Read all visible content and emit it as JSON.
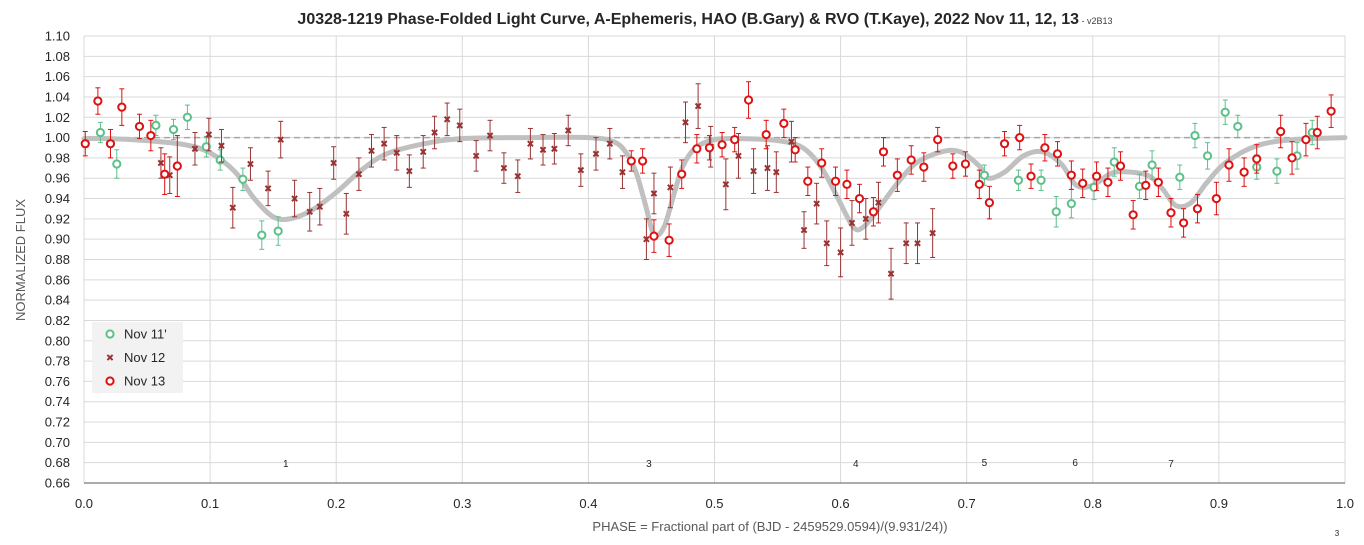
{
  "chart_data": {
    "type": "scatter",
    "title": "J0328-1219 Phase-Folded Light Curve, A-Ephemeris, HAO (B.Gary) & RVO (T.Kaye), 2022 Nov 11, 12, 13",
    "title_suffix": " - v2B13",
    "xlabel": "PHASE = Fractional part of (BJD - 2459529.0594)/(9.931/24))",
    "ylabel": "NORMALIZED FLUX",
    "xlim": [
      0,
      1
    ],
    "ylim": [
      0.66,
      1.1
    ],
    "x_ticks": [
      0.0,
      0.1,
      0.2,
      0.3,
      0.4,
      0.5,
      0.6,
      0.7,
      0.8,
      0.9,
      1.0
    ],
    "x_tick_labels": [
      "0.0",
      "0.1",
      "0.2",
      "0.3",
      "0.4",
      "0.5",
      "0.6",
      "0.7",
      "0.8",
      "0.9",
      "1.0"
    ],
    "y_ticks": [
      0.66,
      0.68,
      0.7,
      0.72,
      0.74,
      0.76,
      0.78,
      0.8,
      0.82,
      0.84,
      0.86,
      0.88,
      0.9,
      0.92,
      0.94,
      0.96,
      0.98,
      1.0,
      1.02,
      1.04,
      1.06,
      1.08,
      1.1
    ],
    "y_tick_labels": [
      "0.66",
      "0.68",
      "0.70",
      "0.72",
      "0.74",
      "0.76",
      "0.78",
      "0.80",
      "0.82",
      "0.84",
      "0.86",
      "0.88",
      "0.90",
      "0.92",
      "0.94",
      "0.96",
      "0.98",
      "1.00",
      "1.02",
      "1.04",
      "1.06",
      "1.08",
      "1.10"
    ],
    "grid": true,
    "reference_line": 1.0,
    "legend_position": "lower-left",
    "dip_labels": [
      {
        "text": "1",
        "x": 0.16,
        "y": 0.679
      },
      {
        "text": "3",
        "x": 0.448,
        "y": 0.679
      },
      {
        "text": "4",
        "x": 0.612,
        "y": 0.679
      },
      {
        "text": "5",
        "x": 0.714,
        "y": 0.68
      },
      {
        "text": "6",
        "x": 0.786,
        "y": 0.68
      },
      {
        "text": "7",
        "x": 0.862,
        "y": 0.679
      }
    ],
    "page_number": "3",
    "colors": {
      "nov11": "#5cc08a",
      "nov12": "#993333",
      "nov13": "#dd1111",
      "model": "#c0c0c0",
      "grid": "#d9d9d9",
      "axis": "#595959",
      "reference": "#a6a6a6"
    },
    "model_curve": [
      [
        0.0,
        0.999
      ],
      [
        0.02,
        0.999
      ],
      [
        0.05,
        0.997
      ],
      [
        0.08,
        0.993
      ],
      [
        0.1,
        0.985
      ],
      [
        0.12,
        0.966
      ],
      [
        0.135,
        0.94
      ],
      [
        0.15,
        0.922
      ],
      [
        0.163,
        0.92
      ],
      [
        0.18,
        0.928
      ],
      [
        0.2,
        0.946
      ],
      [
        0.22,
        0.968
      ],
      [
        0.24,
        0.984
      ],
      [
        0.27,
        0.994
      ],
      [
        0.3,
        0.999
      ],
      [
        0.35,
        1.0
      ],
      [
        0.4,
        1.0
      ],
      [
        0.42,
        0.996
      ],
      [
        0.43,
        0.985
      ],
      [
        0.438,
        0.965
      ],
      [
        0.445,
        0.935
      ],
      [
        0.452,
        0.905
      ],
      [
        0.46,
        0.912
      ],
      [
        0.468,
        0.945
      ],
      [
        0.475,
        0.972
      ],
      [
        0.485,
        0.99
      ],
      [
        0.5,
        0.998
      ],
      [
        0.52,
        0.999
      ],
      [
        0.55,
        0.997
      ],
      [
        0.57,
        0.99
      ],
      [
        0.585,
        0.97
      ],
      [
        0.598,
        0.94
      ],
      [
        0.61,
        0.912
      ],
      [
        0.618,
        0.912
      ],
      [
        0.63,
        0.93
      ],
      [
        0.645,
        0.955
      ],
      [
        0.66,
        0.975
      ],
      [
        0.68,
        0.986
      ],
      [
        0.695,
        0.986
      ],
      [
        0.71,
        0.972
      ],
      [
        0.717,
        0.96
      ],
      [
        0.73,
        0.966
      ],
      [
        0.745,
        0.982
      ],
      [
        0.76,
        0.986
      ],
      [
        0.775,
        0.974
      ],
      [
        0.787,
        0.953
      ],
      [
        0.8,
        0.953
      ],
      [
        0.815,
        0.965
      ],
      [
        0.83,
        0.966
      ],
      [
        0.845,
        0.962
      ],
      [
        0.855,
        0.95
      ],
      [
        0.866,
        0.933
      ],
      [
        0.878,
        0.936
      ],
      [
        0.89,
        0.955
      ],
      [
        0.905,
        0.975
      ],
      [
        0.93,
        0.992
      ],
      [
        0.96,
        0.998
      ],
      [
        1.0,
        1.0
      ]
    ],
    "series": [
      {
        "name": "Nov 11'",
        "marker": "open-circle",
        "points": [
          [
            0.013,
            1.005,
            0.01
          ],
          [
            0.026,
            0.974,
            0.014
          ],
          [
            0.057,
            1.012,
            0.01
          ],
          [
            0.071,
            1.008,
            0.01
          ],
          [
            0.082,
            1.02,
            0.012
          ],
          [
            0.097,
            0.991,
            0.01
          ],
          [
            0.108,
            0.978,
            0.01
          ],
          [
            0.126,
            0.959,
            0.011
          ],
          [
            0.141,
            0.904,
            0.014
          ],
          [
            0.154,
            0.908,
            0.014
          ],
          [
            0.714,
            0.963,
            0.01
          ],
          [
            0.741,
            0.958,
            0.01
          ],
          [
            0.759,
            0.958,
            0.01
          ],
          [
            0.771,
            0.927,
            0.015
          ],
          [
            0.783,
            0.935,
            0.014
          ],
          [
            0.801,
            0.951,
            0.012
          ],
          [
            0.817,
            0.976,
            0.014
          ],
          [
            0.837,
            0.952,
            0.012
          ],
          [
            0.847,
            0.973,
            0.014
          ],
          [
            0.869,
            0.961,
            0.012
          ],
          [
            0.881,
            1.002,
            0.012
          ],
          [
            0.891,
            0.982,
            0.013
          ],
          [
            0.905,
            1.025,
            0.012
          ],
          [
            0.915,
            1.011,
            0.011
          ],
          [
            0.93,
            0.971,
            0.012
          ],
          [
            0.946,
            0.967,
            0.012
          ],
          [
            0.962,
            0.982,
            0.013
          ],
          [
            0.974,
            1.005,
            0.012
          ]
        ]
      },
      {
        "name": "Nov 12",
        "marker": "x",
        "points": [
          [
            0.061,
            0.975,
            0.015
          ],
          [
            0.068,
            0.963,
            0.018
          ],
          [
            0.088,
            0.989,
            0.016
          ],
          [
            0.099,
            1.003,
            0.016
          ],
          [
            0.109,
            0.992,
            0.016
          ],
          [
            0.118,
            0.931,
            0.02
          ],
          [
            0.132,
            0.974,
            0.016
          ],
          [
            0.146,
            0.95,
            0.017
          ],
          [
            0.156,
            0.998,
            0.018
          ],
          [
            0.167,
            0.94,
            0.018
          ],
          [
            0.179,
            0.927,
            0.019
          ],
          [
            0.187,
            0.932,
            0.018
          ],
          [
            0.198,
            0.975,
            0.016
          ],
          [
            0.208,
            0.925,
            0.02
          ],
          [
            0.218,
            0.964,
            0.016
          ],
          [
            0.228,
            0.987,
            0.016
          ],
          [
            0.238,
            0.994,
            0.016
          ],
          [
            0.248,
            0.985,
            0.017
          ],
          [
            0.258,
            0.967,
            0.016
          ],
          [
            0.269,
            0.986,
            0.016
          ],
          [
            0.278,
            1.005,
            0.016
          ],
          [
            0.288,
            1.018,
            0.016
          ],
          [
            0.298,
            1.012,
            0.016
          ],
          [
            0.311,
            0.982,
            0.015
          ],
          [
            0.322,
            1.002,
            0.015
          ],
          [
            0.333,
            0.97,
            0.015
          ],
          [
            0.344,
            0.962,
            0.016
          ],
          [
            0.354,
            0.994,
            0.015
          ],
          [
            0.364,
            0.988,
            0.015
          ],
          [
            0.373,
            0.989,
            0.015
          ],
          [
            0.384,
            1.007,
            0.015
          ],
          [
            0.394,
            0.968,
            0.016
          ],
          [
            0.406,
            0.984,
            0.016
          ],
          [
            0.417,
            0.994,
            0.015
          ],
          [
            0.427,
            0.966,
            0.016
          ],
          [
            0.446,
            0.9,
            0.02
          ],
          [
            0.452,
            0.945,
            0.02
          ],
          [
            0.465,
            0.951,
            0.02
          ],
          [
            0.477,
            1.015,
            0.02
          ],
          [
            0.487,
            1.031,
            0.022
          ],
          [
            0.497,
            0.991,
            0.02
          ],
          [
            0.509,
            0.954,
            0.025
          ],
          [
            0.519,
            0.982,
            0.022
          ],
          [
            0.531,
            0.967,
            0.022
          ],
          [
            0.542,
            0.97,
            0.022
          ],
          [
            0.549,
            0.966,
            0.02
          ],
          [
            0.561,
            0.996,
            0.02
          ],
          [
            0.571,
            0.909,
            0.018
          ],
          [
            0.581,
            0.935,
            0.02
          ],
          [
            0.589,
            0.896,
            0.022
          ],
          [
            0.6,
            0.887,
            0.024
          ],
          [
            0.609,
            0.916,
            0.022
          ],
          [
            0.62,
            0.92,
            0.02
          ],
          [
            0.63,
            0.936,
            0.02
          ],
          [
            0.64,
            0.866,
            0.025
          ],
          [
            0.652,
            0.896,
            0.02
          ],
          [
            0.661,
            0.896,
            0.02
          ],
          [
            0.673,
            0.906,
            0.024
          ]
        ]
      },
      {
        "name": "Nov 13",
        "marker": "open-circle",
        "points": [
          [
            0.001,
            0.994,
            0.012
          ],
          [
            0.011,
            1.036,
            0.013
          ],
          [
            0.021,
            0.994,
            0.014
          ],
          [
            0.03,
            1.03,
            0.018
          ],
          [
            0.044,
            1.011,
            0.012
          ],
          [
            0.053,
            1.002,
            0.015
          ],
          [
            0.064,
            0.964,
            0.02
          ],
          [
            0.074,
            0.972,
            0.03
          ],
          [
            0.434,
            0.977,
            0.01
          ],
          [
            0.443,
            0.977,
            0.012
          ],
          [
            0.452,
            0.903,
            0.016
          ],
          [
            0.464,
            0.899,
            0.016
          ],
          [
            0.474,
            0.964,
            0.014
          ],
          [
            0.486,
            0.989,
            0.014
          ],
          [
            0.496,
            0.99,
            0.012
          ],
          [
            0.506,
            0.993,
            0.012
          ],
          [
            0.516,
            0.998,
            0.012
          ],
          [
            0.527,
            1.037,
            0.018
          ],
          [
            0.541,
            1.003,
            0.014
          ],
          [
            0.555,
            1.014,
            0.014
          ],
          [
            0.564,
            0.988,
            0.012
          ],
          [
            0.574,
            0.957,
            0.014
          ],
          [
            0.585,
            0.975,
            0.014
          ],
          [
            0.596,
            0.957,
            0.014
          ],
          [
            0.605,
            0.954,
            0.014
          ],
          [
            0.615,
            0.94,
            0.014
          ],
          [
            0.626,
            0.927,
            0.014
          ],
          [
            0.634,
            0.986,
            0.014
          ],
          [
            0.645,
            0.963,
            0.016
          ],
          [
            0.656,
            0.978,
            0.014
          ],
          [
            0.666,
            0.971,
            0.014
          ],
          [
            0.677,
            0.998,
            0.012
          ],
          [
            0.689,
            0.972,
            0.012
          ],
          [
            0.699,
            0.974,
            0.012
          ],
          [
            0.71,
            0.954,
            0.014
          ],
          [
            0.718,
            0.936,
            0.016
          ],
          [
            0.73,
            0.994,
            0.012
          ],
          [
            0.742,
            1.0,
            0.012
          ],
          [
            0.751,
            0.962,
            0.012
          ],
          [
            0.762,
            0.99,
            0.013
          ],
          [
            0.772,
            0.984,
            0.012
          ],
          [
            0.783,
            0.963,
            0.014
          ],
          [
            0.792,
            0.955,
            0.014
          ],
          [
            0.803,
            0.962,
            0.014
          ],
          [
            0.812,
            0.956,
            0.014
          ],
          [
            0.822,
            0.972,
            0.014
          ],
          [
            0.832,
            0.924,
            0.014
          ],
          [
            0.842,
            0.953,
            0.014
          ],
          [
            0.852,
            0.956,
            0.014
          ],
          [
            0.862,
            0.926,
            0.014
          ],
          [
            0.872,
            0.916,
            0.014
          ],
          [
            0.883,
            0.93,
            0.014
          ],
          [
            0.898,
            0.94,
            0.016
          ],
          [
            0.908,
            0.973,
            0.016
          ],
          [
            0.92,
            0.966,
            0.014
          ],
          [
            0.93,
            0.979,
            0.014
          ],
          [
            0.949,
            1.006,
            0.016
          ],
          [
            0.958,
            0.98,
            0.016
          ],
          [
            0.969,
            0.998,
            0.016
          ],
          [
            0.978,
            1.005,
            0.016
          ],
          [
            0.989,
            1.026,
            0.016
          ]
        ]
      }
    ]
  }
}
